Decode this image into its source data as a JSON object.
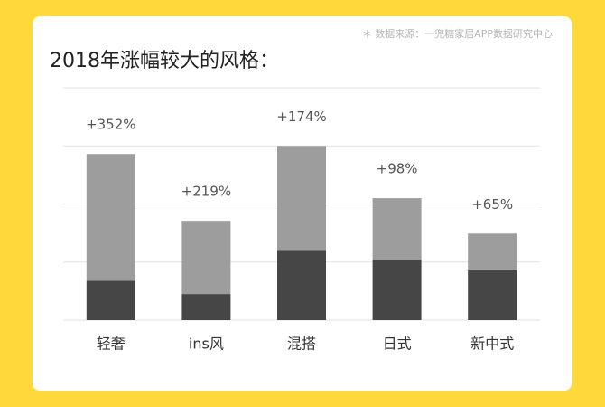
{
  "source": "＊ 数据来源：一兜糖家居APP数据研究中心",
  "chart_data": {
    "type": "bar",
    "stacked": true,
    "title": "2018年涨幅较大的风格：",
    "categories": [
      "轻奢",
      "ins风",
      "混搭",
      "日式",
      "新中式"
    ],
    "series": [
      {
        "color": "#464646",
        "values": [
          0.68,
          0.45,
          1.21,
          1.04,
          0.86
        ]
      },
      {
        "color": "#9d9d9d",
        "values": [
          2.18,
          1.26,
          1.79,
          1.06,
          0.63
        ]
      }
    ],
    "growth": {
      "values": [
        352,
        219,
        174,
        98,
        65
      ],
      "value_labels": [
        "+352%",
        "+219%",
        "+174%",
        "+98%",
        "+65%"
      ]
    },
    "ylim": [
      0,
      4
    ],
    "yticks": [
      0,
      1,
      2,
      3,
      4
    ],
    "grid": true
  }
}
